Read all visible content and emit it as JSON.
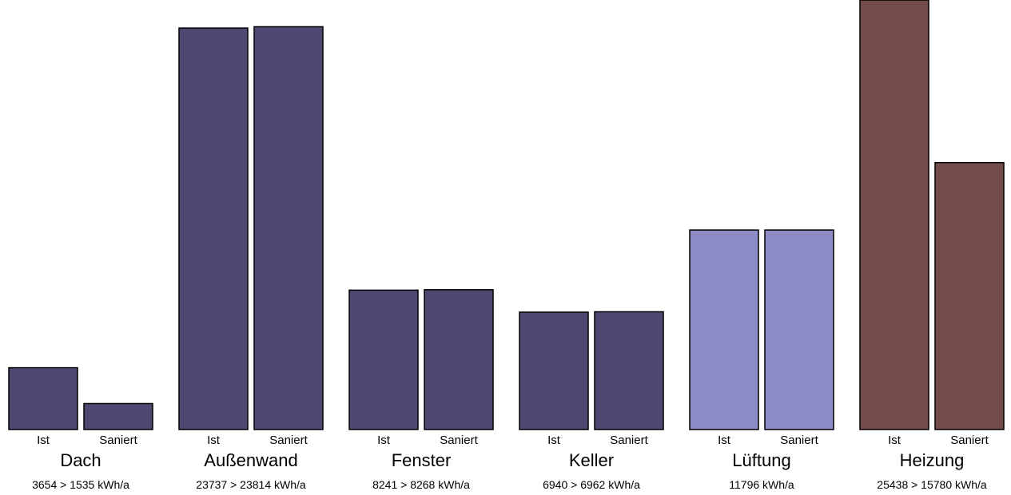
{
  "chart_data": {
    "type": "bar",
    "unit": "kWh/a",
    "bar_labels": [
      "Ist",
      "Saniert"
    ],
    "groups": [
      {
        "name": "Dach",
        "values": [
          3654,
          1535
        ],
        "summary": "3654 > 1535 kWh/a",
        "color": "#504872"
      },
      {
        "name": "Außenwand",
        "values": [
          23737,
          23814
        ],
        "summary": "23737 > 23814 kWh/a",
        "color": "#504872"
      },
      {
        "name": "Fenster",
        "values": [
          8241,
          8268
        ],
        "summary": "8241 > 8268 kWh/a",
        "color": "#504872"
      },
      {
        "name": "Keller",
        "values": [
          6940,
          6962
        ],
        "summary": "6940 > 6962 kWh/a",
        "color": "#504872"
      },
      {
        "name": "Lüftung",
        "values": [
          11796,
          11796
        ],
        "summary": "11796 kWh/a",
        "color": "#8e8cc6"
      },
      {
        "name": "Heizung",
        "values": [
          25438,
          15780
        ],
        "summary": "25438 > 15780 kWh/a",
        "color": "#744b4b"
      }
    ],
    "ylim": [
      0,
      25000
    ],
    "grid": false,
    "legend": "none"
  }
}
